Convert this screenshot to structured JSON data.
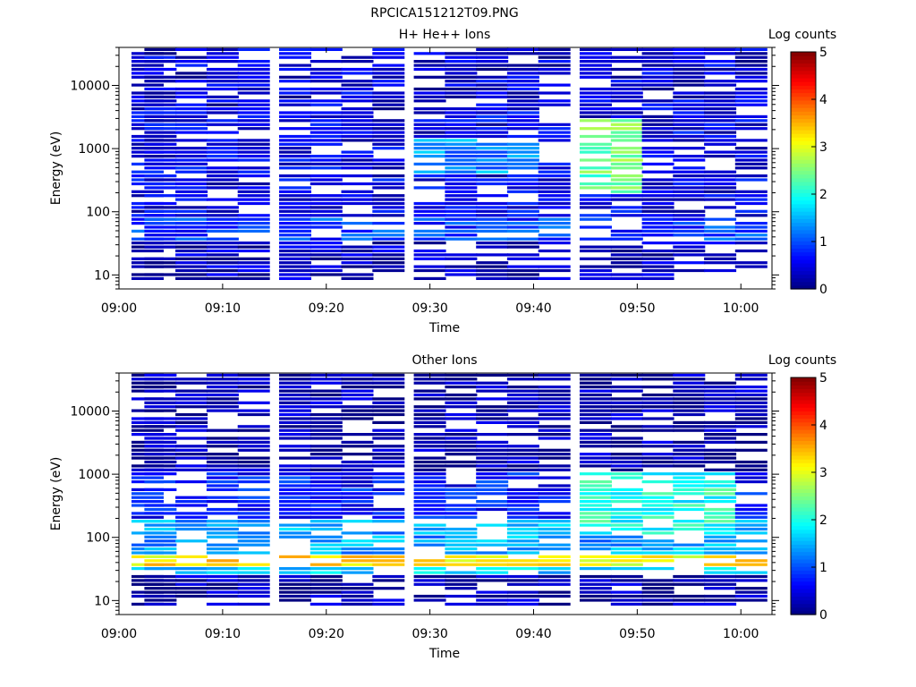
{
  "figure": {
    "title": "RPCICA151212T09.PNG"
  },
  "chart_data": [
    {
      "type": "heatmap",
      "title": "H+ He++ Ions",
      "xlabel": "Time",
      "ylabel": "Energy (eV)",
      "y_scale": "log",
      "ylim": [
        6,
        40000
      ],
      "xlim": [
        "09:00",
        "10:03"
      ],
      "x_ticks": [
        "09:00",
        "09:10",
        "09:20",
        "09:30",
        "09:40",
        "09:50",
        "10:00"
      ],
      "y_ticks": [
        "10",
        "100",
        "1000",
        "10000"
      ],
      "colorbar": {
        "label": "Log counts",
        "range": [
          0,
          5
        ],
        "ticks": [
          "0",
          "1",
          "2",
          "3",
          "4",
          "5"
        ],
        "colormap": "jet"
      },
      "time_bins": [
        "09:01",
        "09:04",
        "09:07",
        "09:10",
        "09:13",
        "09:17",
        "09:20",
        "09:23",
        "09:26",
        "09:30",
        "09:33",
        "09:36",
        "09:39",
        "09:42",
        "09:46",
        "09:49",
        "09:52",
        "09:55",
        "09:58",
        "10:01"
      ],
      "bands": [
        {
          "energy_range": [
            8,
            35
          ],
          "level": 0.3
        },
        {
          "energy_range": [
            30,
            80
          ],
          "level": 0.9
        },
        {
          "energy_range": [
            80,
            4000
          ],
          "level": 0.5
        },
        {
          "energy_range": [
            4000,
            40000
          ],
          "level": 0.4
        },
        {
          "energy_range": [
            200,
            3000
          ],
          "time_range": [
            "09:44",
            "09:50"
          ],
          "level": 2.4
        },
        {
          "energy_range": [
            400,
            1500
          ],
          "time_range": [
            "09:30",
            "09:40"
          ],
          "level": 1.3
        }
      ]
    },
    {
      "type": "heatmap",
      "title": "Other Ions",
      "xlabel": "Time",
      "ylabel": "Energy (eV)",
      "y_scale": "log",
      "ylim": [
        6,
        40000
      ],
      "xlim": [
        "09:00",
        "10:03"
      ],
      "x_ticks": [
        "09:00",
        "09:10",
        "09:20",
        "09:30",
        "09:40",
        "09:50",
        "10:00"
      ],
      "y_ticks": [
        "10",
        "100",
        "1000",
        "10000"
      ],
      "colorbar": {
        "label": "Log counts",
        "range": [
          0,
          5
        ],
        "ticks": [
          "0",
          "1",
          "2",
          "3",
          "4",
          "5"
        ],
        "colormap": "jet"
      },
      "time_bins": [
        "09:01",
        "09:04",
        "09:07",
        "09:10",
        "09:13",
        "09:17",
        "09:20",
        "09:23",
        "09:26",
        "09:30",
        "09:33",
        "09:36",
        "09:39",
        "09:42",
        "09:46",
        "09:49",
        "09:52",
        "09:55",
        "09:58",
        "10:01"
      ],
      "bands": [
        {
          "energy_range": [
            8,
            25
          ],
          "level": 0.2
        },
        {
          "energy_range": [
            25,
            32
          ],
          "level": 1.7
        },
        {
          "energy_range": [
            32,
            55
          ],
          "level": 3.2
        },
        {
          "energy_range": [
            55,
            200
          ],
          "level": 1.4
        },
        {
          "energy_range": [
            200,
            1000
          ],
          "level": 0.7
        },
        {
          "energy_range": [
            100,
            1000
          ],
          "time_range": [
            "09:45",
            "10:00"
          ],
          "level": 2.0
        },
        {
          "energy_range": [
            1000,
            40000
          ],
          "level": 0.2
        }
      ]
    }
  ]
}
